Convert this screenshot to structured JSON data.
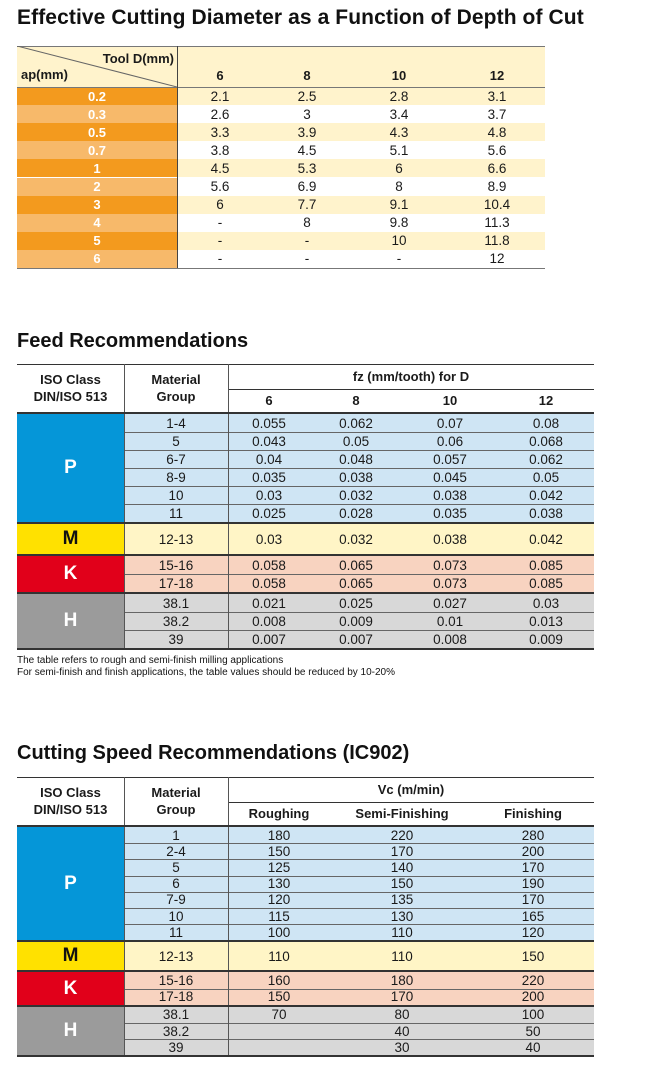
{
  "colors": {
    "cream": "#fff3cc",
    "orange_dark": "#f39a1e",
    "orange_light": "#f7b96a",
    "blue_cell": "#cfe5f4",
    "blue_iso": "#0596d8",
    "yellow_iso": "#ffe100",
    "yellow_cell": "#fff5c6",
    "red_iso": "#e1001a",
    "red_cell": "#f8d3c0",
    "grey_iso": "#9b9b9b",
    "grey_cell": "#d8d8d8"
  },
  "table1": {
    "title": "Effective Cutting Diameter as a Function of Depth of Cut",
    "corner_top": "Tool D(mm)",
    "corner_bottom": "ap(mm)",
    "columns": [
      "6",
      "8",
      "10",
      "12"
    ],
    "rows": [
      {
        "ap": "0.2",
        "values": [
          "2.1",
          "2.5",
          "2.8",
          "3.1"
        ]
      },
      {
        "ap": "0.3",
        "values": [
          "2.6",
          "3",
          "3.4",
          "3.7"
        ]
      },
      {
        "ap": "0.5",
        "values": [
          "3.3",
          "3.9",
          "4.3",
          "4.8"
        ]
      },
      {
        "ap": "0.7",
        "values": [
          "3.8",
          "4.5",
          "5.1",
          "5.6"
        ]
      },
      {
        "ap": "1",
        "values": [
          "4.5",
          "5.3",
          "6",
          "6.6"
        ]
      },
      {
        "ap": "2",
        "values": [
          "5.6",
          "6.9",
          "8",
          "8.9"
        ]
      },
      {
        "ap": "3",
        "values": [
          "6",
          "7.7",
          "9.1",
          "10.4"
        ]
      },
      {
        "ap": "4",
        "values": [
          "-",
          "8",
          "9.8",
          "11.3"
        ]
      },
      {
        "ap": "5",
        "values": [
          "-",
          "-",
          "10",
          "11.8"
        ]
      },
      {
        "ap": "6",
        "values": [
          "-",
          "-",
          "-",
          "12"
        ]
      }
    ]
  },
  "table2": {
    "title": "Feed Recommendations",
    "iso_header": "ISO Class DIN/ISO 513",
    "group_header": "Material Group",
    "value_header": "fz (mm/tooth) for D",
    "columns": [
      "6",
      "8",
      "10",
      "12"
    ],
    "groups": [
      {
        "iso": "P",
        "color": "blue",
        "rows": [
          {
            "group": "1-4",
            "values": [
              "0.055",
              "0.062",
              "0.07",
              "0.08"
            ]
          },
          {
            "group": "5",
            "values": [
              "0.043",
              "0.05",
              "0.06",
              "0.068"
            ]
          },
          {
            "group": "6-7",
            "values": [
              "0.04",
              "0.048",
              "0.057",
              "0.062"
            ]
          },
          {
            "group": "8-9",
            "values": [
              "0.035",
              "0.038",
              "0.045",
              "0.05"
            ]
          },
          {
            "group": "10",
            "values": [
              "0.03",
              "0.032",
              "0.038",
              "0.042"
            ]
          },
          {
            "group": "11",
            "values": [
              "0.025",
              "0.028",
              "0.035",
              "0.038"
            ]
          }
        ]
      },
      {
        "iso": "M",
        "color": "yellow",
        "rows": [
          {
            "group": "12-13",
            "values": [
              "0.03",
              "0.032",
              "0.038",
              "0.042"
            ]
          }
        ]
      },
      {
        "iso": "K",
        "color": "red",
        "rows": [
          {
            "group": "15-16",
            "values": [
              "0.058",
              "0.065",
              "0.073",
              "0.085"
            ]
          },
          {
            "group": "17-18",
            "values": [
              "0.058",
              "0.065",
              "0.073",
              "0.085"
            ]
          }
        ]
      },
      {
        "iso": "H",
        "color": "grey",
        "rows": [
          {
            "group": "38.1",
            "values": [
              "0.021",
              "0.025",
              "0.027",
              "0.03"
            ]
          },
          {
            "group": "38.2",
            "values": [
              "0.008",
              "0.009",
              "0.01",
              "0.013"
            ]
          },
          {
            "group": "39",
            "values": [
              "0.007",
              "0.007",
              "0.008",
              "0.009"
            ]
          }
        ]
      }
    ],
    "notes": [
      "The table refers to rough and semi-finish milling applications",
      "For semi-finish and finish applications, the table values should be reduced by 10-20%"
    ]
  },
  "table3": {
    "title": "Cutting Speed Recommendations (IC902)",
    "iso_header": "ISO Class DIN/ISO 513",
    "group_header": "Material Group",
    "value_header": "Vc (m/min)",
    "columns": [
      "Roughing",
      "Semi-Finishing",
      "Finishing"
    ],
    "groups": [
      {
        "iso": "P",
        "color": "blue",
        "rows": [
          {
            "group": "1",
            "values": [
              "180",
              "220",
              "280"
            ]
          },
          {
            "group": "2-4",
            "values": [
              "150",
              "170",
              "200"
            ]
          },
          {
            "group": "5",
            "values": [
              "125",
              "140",
              "170"
            ]
          },
          {
            "group": "6",
            "values": [
              "130",
              "150",
              "190"
            ]
          },
          {
            "group": "7-9",
            "values": [
              "120",
              "135",
              "170"
            ]
          },
          {
            "group": "10",
            "values": [
              "115",
              "130",
              "165"
            ]
          },
          {
            "group": "11",
            "values": [
              "100",
              "110",
              "120"
            ]
          }
        ]
      },
      {
        "iso": "M",
        "color": "yellow",
        "rows": [
          {
            "group": "12-13",
            "values": [
              "110",
              "110",
              "150"
            ]
          }
        ]
      },
      {
        "iso": "K",
        "color": "red",
        "rows": [
          {
            "group": "15-16",
            "values": [
              "160",
              "180",
              "220"
            ]
          },
          {
            "group": "17-18",
            "values": [
              "150",
              "170",
              "200"
            ]
          }
        ]
      },
      {
        "iso": "H",
        "color": "grey",
        "rows": [
          {
            "group": "38.1",
            "values": [
              "70",
              "80",
              "100"
            ]
          },
          {
            "group": "38.2",
            "values": [
              "",
              "40",
              "50"
            ]
          },
          {
            "group": "39",
            "values": [
              "",
              "30",
              "40"
            ]
          }
        ]
      }
    ]
  }
}
